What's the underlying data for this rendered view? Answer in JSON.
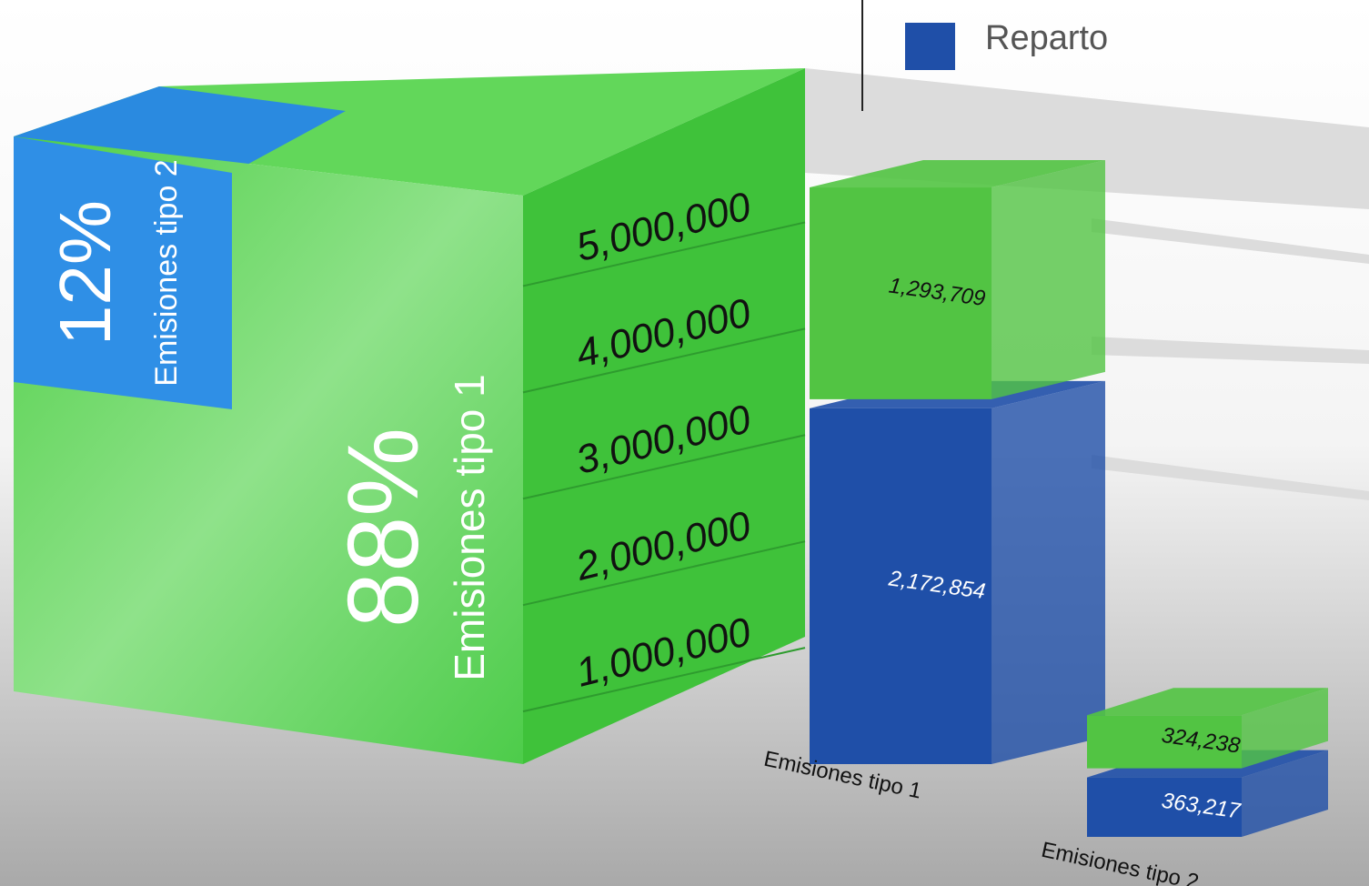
{
  "chart_data": [
    {
      "type": "share",
      "categories": [
        "Emisiones tipo 2",
        "Emisiones tipo 1"
      ],
      "values": [
        12,
        88
      ],
      "value_labels": [
        "12%",
        "88%"
      ],
      "colors": [
        "#2f8fe6",
        "#5fdc5a"
      ]
    },
    {
      "type": "stacked-bar-3d",
      "categories": [
        "Emisiones tipo 1",
        "Emisiones tipo 2"
      ],
      "series": [
        {
          "name": "Reparto",
          "color": "#1f4fa8",
          "values": [
            2172854,
            363217
          ],
          "value_labels": [
            "2,172,854",
            "363,217"
          ]
        },
        {
          "color": "#52c443",
          "values": [
            1293709,
            324238
          ],
          "value_labels": [
            "1,293,709",
            "324,238"
          ]
        }
      ],
      "ylim": [
        0,
        5500000
      ],
      "yticks": [
        {
          "value": 1000000,
          "label": "1,000,000"
        },
        {
          "value": 2000000,
          "label": "2,000,000"
        },
        {
          "value": 3000000,
          "label": "3,000,000"
        },
        {
          "value": 4000000,
          "label": "4,000,000"
        },
        {
          "value": 5000000,
          "label": "5,000,000"
        }
      ],
      "legend": "top"
    }
  ]
}
